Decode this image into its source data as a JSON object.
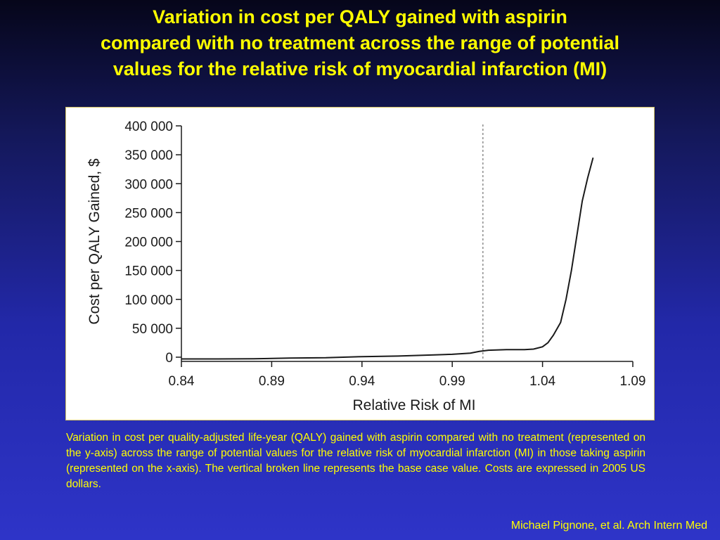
{
  "slide": {
    "title_lines": [
      "Variation in cost per QALY gained with aspirin",
      "compared with no treatment across the range of potential",
      "values for the relative risk of myocardial infarction (MI)"
    ],
    "caption": "Variation in cost per quality-adjusted life-year (QALY) gained with aspirin compared with no treatment (represented on the y-axis) across the range of potential values for the relative risk of myocardial infarction (MI) in those taking aspirin (represented on the x-axis). The vertical broken line represents the base case value. Costs are expressed in 2005 US dollars.",
    "citation": "Michael Pignone, et al. Arch Intern Med"
  },
  "colors": {
    "title": "#ffff00",
    "curve": "#1a1a1a",
    "panel": "#ffffff"
  },
  "chart_data": {
    "type": "line",
    "xlabel": "Relative Risk of MI",
    "ylabel": "Cost per QALY Gained, $",
    "xlim": [
      0.84,
      1.09
    ],
    "ylim": [
      0,
      400000
    ],
    "x_ticks": [
      0.84,
      0.89,
      0.94,
      0.99,
      1.04,
      1.09
    ],
    "x_tick_labels": [
      "0.84",
      "0.89",
      "0.94",
      "0.99",
      "1.04",
      "1.09"
    ],
    "y_ticks": [
      0,
      50000,
      100000,
      150000,
      200000,
      250000,
      300000,
      350000,
      400000
    ],
    "y_tick_labels": [
      "0",
      "50 000",
      "100 000",
      "150 000",
      "200 000",
      "250 000",
      "300 000",
      "350 000",
      "400 000"
    ],
    "base_case_x": 1.007,
    "grid": false,
    "series": [
      {
        "x": [
          0.84,
          0.86,
          0.88,
          0.9,
          0.92,
          0.94,
          0.96,
          0.98,
          0.99,
          1.0,
          1.005,
          1.01,
          1.02,
          1.03,
          1.035,
          1.04,
          1.043,
          1.046,
          1.05,
          1.053,
          1.056,
          1.059,
          1.062,
          1.065,
          1.068
        ],
        "values": [
          -3000,
          -3000,
          -2800,
          -1500,
          -1000,
          1000,
          2000,
          4000,
          5000,
          7000,
          10000,
          12000,
          13000,
          13000,
          14000,
          18000,
          25000,
          38000,
          60000,
          100000,
          150000,
          210000,
          270000,
          310000,
          345000
        ]
      }
    ]
  }
}
